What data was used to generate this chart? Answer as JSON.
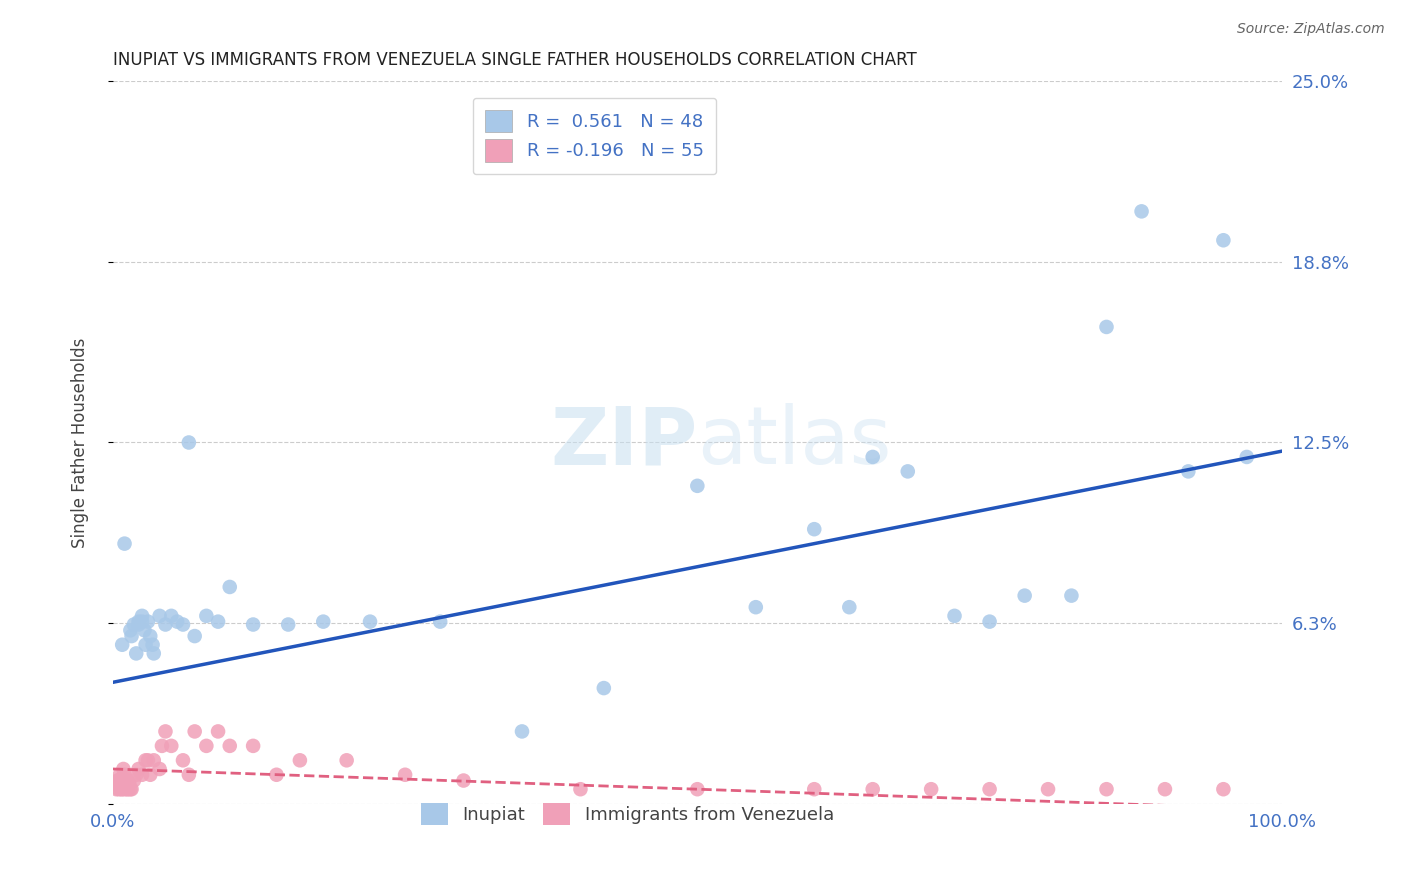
{
  "title": "INUPIAT VS IMMIGRANTS FROM VENEZUELA SINGLE FATHER HOUSEHOLDS CORRELATION CHART",
  "source": "Source: ZipAtlas.com",
  "ylabel": "Single Father Households",
  "xlim": [
    0,
    1.0
  ],
  "ylim": [
    0,
    0.25
  ],
  "yticks": [
    0.0,
    0.0625,
    0.125,
    0.1875,
    0.25
  ],
  "ytick_labels": [
    "",
    "6.3%",
    "12.5%",
    "18.8%",
    "25.0%"
  ],
  "xtick_labels": [
    "0.0%",
    "100.0%"
  ],
  "blue_color": "#a8c8e8",
  "pink_color": "#f0a0b8",
  "blue_line_color": "#2255bb",
  "pink_line_color": "#e06080",
  "watermark_zip": "ZIP",
  "watermark_atlas": "atlas",
  "inupiat_x": [
    0.008,
    0.01,
    0.015,
    0.016,
    0.018,
    0.02,
    0.022,
    0.022,
    0.025,
    0.025,
    0.027,
    0.028,
    0.03,
    0.032,
    0.034,
    0.035,
    0.04,
    0.045,
    0.05,
    0.055,
    0.06,
    0.065,
    0.07,
    0.08,
    0.09,
    0.1,
    0.12,
    0.15,
    0.18,
    0.22,
    0.28,
    0.35,
    0.42,
    0.5,
    0.55,
    0.6,
    0.63,
    0.65,
    0.68,
    0.72,
    0.75,
    0.78,
    0.82,
    0.85,
    0.88,
    0.92,
    0.95,
    0.97
  ],
  "inupiat_y": [
    0.055,
    0.09,
    0.06,
    0.058,
    0.062,
    0.052,
    0.063,
    0.062,
    0.065,
    0.063,
    0.06,
    0.055,
    0.063,
    0.058,
    0.055,
    0.052,
    0.065,
    0.062,
    0.065,
    0.063,
    0.062,
    0.125,
    0.058,
    0.065,
    0.063,
    0.075,
    0.062,
    0.062,
    0.063,
    0.063,
    0.063,
    0.025,
    0.04,
    0.11,
    0.068,
    0.095,
    0.068,
    0.12,
    0.115,
    0.065,
    0.063,
    0.072,
    0.072,
    0.165,
    0.205,
    0.115,
    0.195,
    0.12
  ],
  "venezuela_x": [
    0.003,
    0.004,
    0.005,
    0.005,
    0.006,
    0.006,
    0.007,
    0.007,
    0.008,
    0.008,
    0.009,
    0.009,
    0.01,
    0.01,
    0.01,
    0.012,
    0.012,
    0.013,
    0.014,
    0.015,
    0.016,
    0.018,
    0.02,
    0.022,
    0.025,
    0.028,
    0.03,
    0.032,
    0.035,
    0.04,
    0.042,
    0.045,
    0.05,
    0.06,
    0.065,
    0.07,
    0.08,
    0.09,
    0.1,
    0.12,
    0.14,
    0.16,
    0.2,
    0.25,
    0.3,
    0.4,
    0.5,
    0.6,
    0.65,
    0.7,
    0.75,
    0.8,
    0.85,
    0.9,
    0.95
  ],
  "venezuela_y": [
    0.005,
    0.008,
    0.005,
    0.008,
    0.006,
    0.01,
    0.005,
    0.008,
    0.005,
    0.009,
    0.006,
    0.012,
    0.005,
    0.007,
    0.01,
    0.005,
    0.008,
    0.005,
    0.007,
    0.005,
    0.005,
    0.008,
    0.01,
    0.012,
    0.01,
    0.015,
    0.015,
    0.01,
    0.015,
    0.012,
    0.02,
    0.025,
    0.02,
    0.015,
    0.01,
    0.025,
    0.02,
    0.025,
    0.02,
    0.02,
    0.01,
    0.015,
    0.015,
    0.01,
    0.008,
    0.005,
    0.005,
    0.005,
    0.005,
    0.005,
    0.005,
    0.005,
    0.005,
    0.005,
    0.005
  ]
}
